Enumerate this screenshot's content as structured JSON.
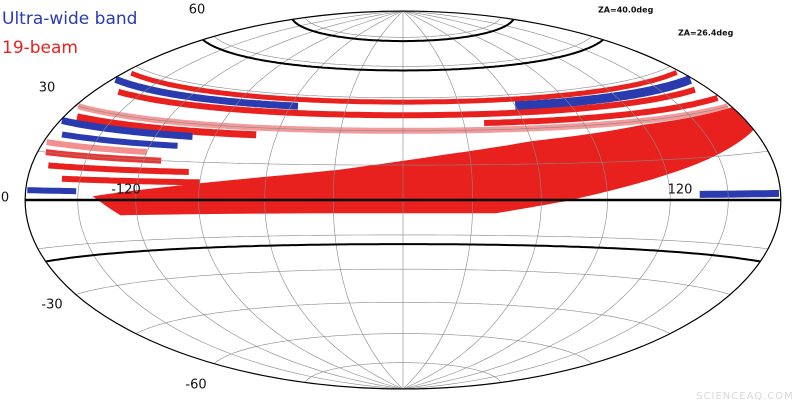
{
  "legend": [
    {
      "label": "Ultra-wide band",
      "color": "#2a3bb0"
    },
    {
      "label": "19-beam",
      "color": "#e8201e"
    }
  ],
  "lat_labels": [
    "60",
    "30",
    "0",
    "-30",
    "-60"
  ],
  "lon_labels": [
    "-120",
    "120"
  ],
  "annotations": [
    "ZA=40.0deg",
    "ZA=26.4deg"
  ],
  "watermark": "SCIENCEAQ.COM"
}
